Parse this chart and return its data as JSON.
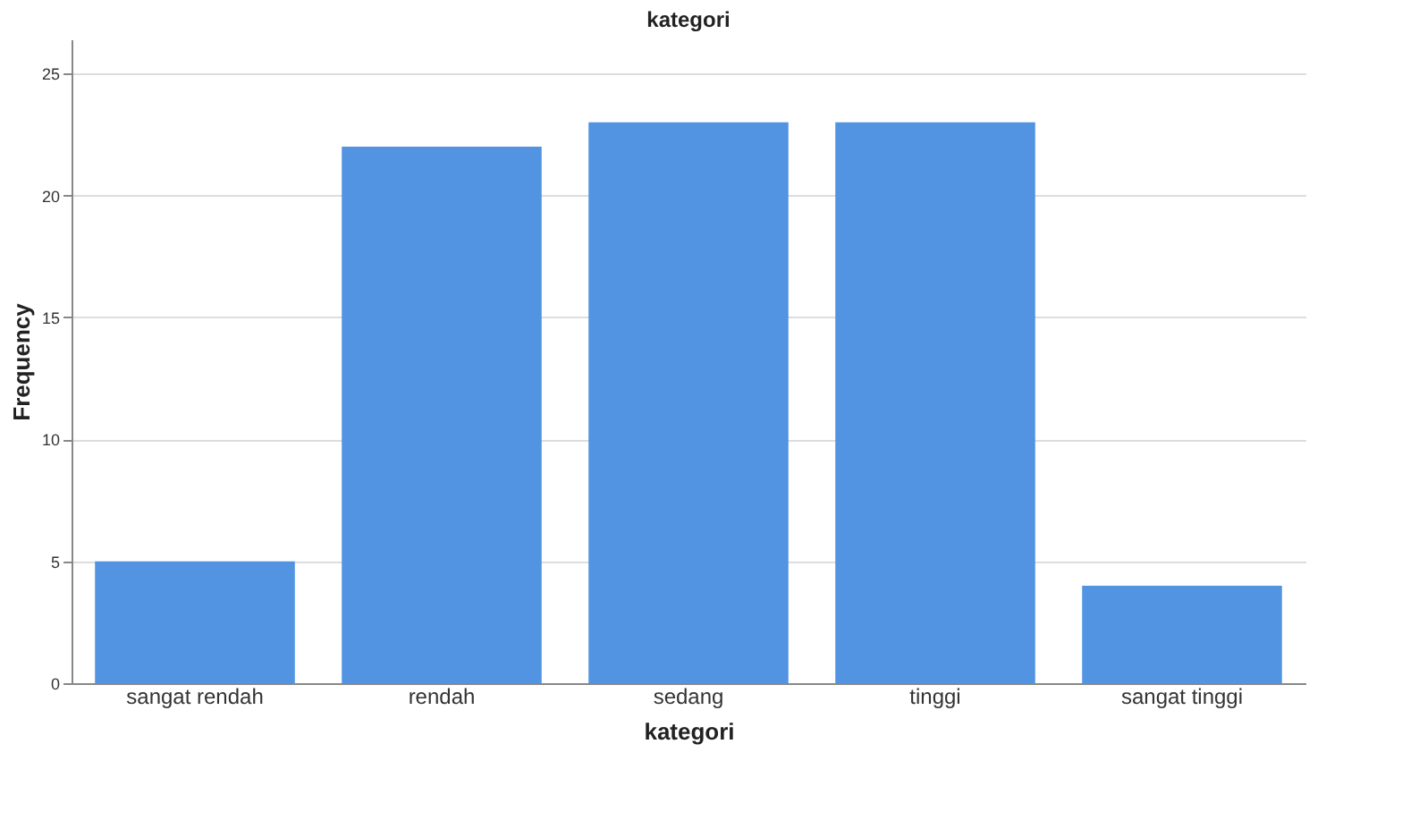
{
  "chart_data": {
    "type": "bar",
    "title": "kategori",
    "xlabel": "kategori",
    "ylabel": "Frequency",
    "categories": [
      "sangat rendah",
      "rendah",
      "sedang",
      "tinggi",
      "sangat tinggi"
    ],
    "values": [
      5,
      22,
      23,
      23,
      4
    ],
    "color": "#5294e2",
    "ylim": [
      0,
      26.4
    ],
    "yticks": [
      0,
      5,
      10,
      15,
      20,
      25
    ],
    "grid": "y"
  }
}
